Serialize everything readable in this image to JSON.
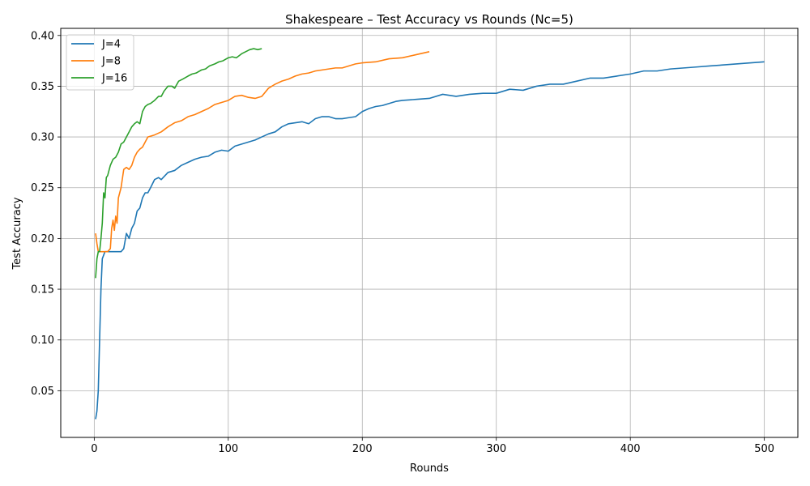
{
  "chart_data": {
    "type": "line",
    "title": "Shakespeare – Test Accuracy vs Rounds (Nc=5)",
    "xlabel": "Rounds",
    "ylabel": "Test Accuracy",
    "xlim": [
      -25,
      525
    ],
    "ylim": [
      0.004,
      0.407
    ],
    "xticks": [
      0,
      100,
      200,
      300,
      400,
      500
    ],
    "yticks": [
      0.05,
      0.1,
      0.15,
      0.2,
      0.25,
      0.3,
      0.35,
      0.4
    ],
    "grid": true,
    "legend_position": "top-left",
    "series": [
      {
        "name": "J=4",
        "color": "#1f77b4",
        "points": [
          [
            1,
            0.022
          ],
          [
            2,
            0.03
          ],
          [
            3,
            0.05
          ],
          [
            4,
            0.1
          ],
          [
            5,
            0.15
          ],
          [
            6,
            0.18
          ],
          [
            8,
            0.187
          ],
          [
            20,
            0.187
          ],
          [
            22,
            0.19
          ],
          [
            24,
            0.205
          ],
          [
            26,
            0.2
          ],
          [
            28,
            0.21
          ],
          [
            30,
            0.215
          ],
          [
            32,
            0.227
          ],
          [
            34,
            0.23
          ],
          [
            36,
            0.24
          ],
          [
            38,
            0.245
          ],
          [
            40,
            0.245
          ],
          [
            42,
            0.25
          ],
          [
            45,
            0.258
          ],
          [
            48,
            0.26
          ],
          [
            50,
            0.258
          ],
          [
            55,
            0.265
          ],
          [
            60,
            0.267
          ],
          [
            65,
            0.272
          ],
          [
            70,
            0.275
          ],
          [
            75,
            0.278
          ],
          [
            80,
            0.28
          ],
          [
            85,
            0.281
          ],
          [
            90,
            0.285
          ],
          [
            95,
            0.287
          ],
          [
            100,
            0.286
          ],
          [
            105,
            0.291
          ],
          [
            110,
            0.293
          ],
          [
            115,
            0.295
          ],
          [
            120,
            0.297
          ],
          [
            125,
            0.3
          ],
          [
            130,
            0.303
          ],
          [
            135,
            0.305
          ],
          [
            140,
            0.31
          ],
          [
            145,
            0.313
          ],
          [
            150,
            0.314
          ],
          [
            155,
            0.315
          ],
          [
            160,
            0.313
          ],
          [
            165,
            0.318
          ],
          [
            170,
            0.32
          ],
          [
            175,
            0.32
          ],
          [
            180,
            0.318
          ],
          [
            185,
            0.318
          ],
          [
            190,
            0.319
          ],
          [
            195,
            0.32
          ],
          [
            200,
            0.325
          ],
          [
            205,
            0.328
          ],
          [
            210,
            0.33
          ],
          [
            215,
            0.331
          ],
          [
            220,
            0.333
          ],
          [
            225,
            0.335
          ],
          [
            230,
            0.336
          ],
          [
            240,
            0.337
          ],
          [
            250,
            0.338
          ],
          [
            260,
            0.342
          ],
          [
            270,
            0.34
          ],
          [
            280,
            0.342
          ],
          [
            290,
            0.343
          ],
          [
            300,
            0.343
          ],
          [
            310,
            0.347
          ],
          [
            320,
            0.346
          ],
          [
            330,
            0.35
          ],
          [
            340,
            0.352
          ],
          [
            350,
            0.352
          ],
          [
            360,
            0.355
          ],
          [
            370,
            0.358
          ],
          [
            380,
            0.358
          ],
          [
            390,
            0.36
          ],
          [
            400,
            0.362
          ],
          [
            410,
            0.365
          ],
          [
            420,
            0.365
          ],
          [
            430,
            0.367
          ],
          [
            440,
            0.368
          ],
          [
            450,
            0.369
          ],
          [
            460,
            0.37
          ],
          [
            470,
            0.371
          ],
          [
            480,
            0.372
          ],
          [
            490,
            0.373
          ],
          [
            500,
            0.374
          ]
        ]
      },
      {
        "name": "J=8",
        "color": "#ff7f0e",
        "points": [
          [
            1,
            0.205
          ],
          [
            2,
            0.195
          ],
          [
            3,
            0.187
          ],
          [
            6,
            0.187
          ],
          [
            10,
            0.187
          ],
          [
            12,
            0.19
          ],
          [
            13,
            0.21
          ],
          [
            14,
            0.218
          ],
          [
            15,
            0.208
          ],
          [
            16,
            0.222
          ],
          [
            17,
            0.215
          ],
          [
            18,
            0.24
          ],
          [
            20,
            0.25
          ],
          [
            22,
            0.268
          ],
          [
            24,
            0.27
          ],
          [
            26,
            0.268
          ],
          [
            28,
            0.272
          ],
          [
            30,
            0.28
          ],
          [
            32,
            0.285
          ],
          [
            34,
            0.288
          ],
          [
            36,
            0.29
          ],
          [
            38,
            0.295
          ],
          [
            40,
            0.3
          ],
          [
            45,
            0.302
          ],
          [
            50,
            0.305
          ],
          [
            55,
            0.31
          ],
          [
            60,
            0.314
          ],
          [
            65,
            0.316
          ],
          [
            70,
            0.32
          ],
          [
            75,
            0.322
          ],
          [
            80,
            0.325
          ],
          [
            85,
            0.328
          ],
          [
            90,
            0.332
          ],
          [
            95,
            0.334
          ],
          [
            100,
            0.336
          ],
          [
            105,
            0.34
          ],
          [
            110,
            0.341
          ],
          [
            115,
            0.339
          ],
          [
            120,
            0.338
          ],
          [
            125,
            0.34
          ],
          [
            130,
            0.348
          ],
          [
            135,
            0.352
          ],
          [
            140,
            0.355
          ],
          [
            145,
            0.357
          ],
          [
            150,
            0.36
          ],
          [
            155,
            0.362
          ],
          [
            160,
            0.363
          ],
          [
            165,
            0.365
          ],
          [
            170,
            0.366
          ],
          [
            175,
            0.367
          ],
          [
            180,
            0.368
          ],
          [
            185,
            0.368
          ],
          [
            190,
            0.37
          ],
          [
            195,
            0.372
          ],
          [
            200,
            0.373
          ],
          [
            210,
            0.374
          ],
          [
            220,
            0.377
          ],
          [
            230,
            0.378
          ],
          [
            240,
            0.381
          ],
          [
            250,
            0.384
          ]
        ]
      },
      {
        "name": "J=16",
        "color": "#2ca02c",
        "points": [
          [
            1,
            0.161
          ],
          [
            2,
            0.18
          ],
          [
            3,
            0.187
          ],
          [
            4,
            0.187
          ],
          [
            5,
            0.2
          ],
          [
            6,
            0.215
          ],
          [
            7,
            0.245
          ],
          [
            8,
            0.24
          ],
          [
            9,
            0.26
          ],
          [
            10,
            0.262
          ],
          [
            12,
            0.272
          ],
          [
            14,
            0.278
          ],
          [
            16,
            0.28
          ],
          [
            18,
            0.285
          ],
          [
            20,
            0.293
          ],
          [
            22,
            0.295
          ],
          [
            24,
            0.3
          ],
          [
            26,
            0.305
          ],
          [
            28,
            0.31
          ],
          [
            30,
            0.313
          ],
          [
            32,
            0.315
          ],
          [
            34,
            0.313
          ],
          [
            36,
            0.325
          ],
          [
            38,
            0.33
          ],
          [
            40,
            0.332
          ],
          [
            42,
            0.333
          ],
          [
            45,
            0.336
          ],
          [
            48,
            0.34
          ],
          [
            50,
            0.34
          ],
          [
            52,
            0.345
          ],
          [
            55,
            0.35
          ],
          [
            58,
            0.35
          ],
          [
            60,
            0.348
          ],
          [
            63,
            0.355
          ],
          [
            66,
            0.357
          ],
          [
            70,
            0.36
          ],
          [
            73,
            0.362
          ],
          [
            76,
            0.363
          ],
          [
            80,
            0.366
          ],
          [
            83,
            0.367
          ],
          [
            86,
            0.37
          ],
          [
            90,
            0.372
          ],
          [
            93,
            0.374
          ],
          [
            96,
            0.375
          ],
          [
            100,
            0.378
          ],
          [
            103,
            0.379
          ],
          [
            106,
            0.378
          ],
          [
            110,
            0.382
          ],
          [
            113,
            0.384
          ],
          [
            116,
            0.386
          ],
          [
            119,
            0.387
          ],
          [
            122,
            0.386
          ],
          [
            125,
            0.387
          ]
        ]
      }
    ]
  }
}
